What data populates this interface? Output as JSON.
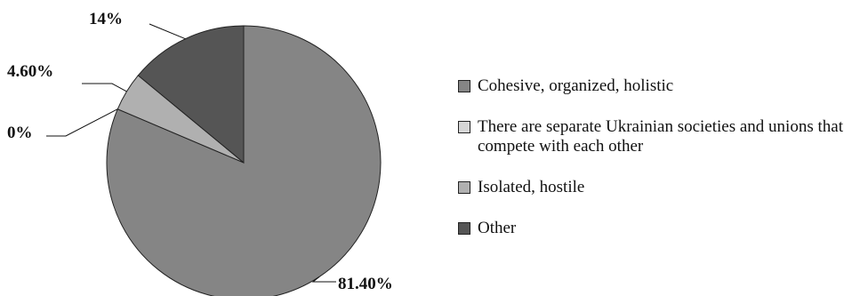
{
  "chart_data": {
    "type": "pie",
    "categories": [
      "Cohesive, organized, holistic",
      "There are separate Ukrainian societies and unions that compete with each other",
      "Isolated, hostile",
      "Other"
    ],
    "values": [
      81.4,
      0,
      4.6,
      14
    ],
    "data_labels": [
      "81.40%",
      "0%",
      "4.60%",
      "14%"
    ],
    "colors": [
      "#858585",
      "#d6d6d6",
      "#b0b0b0",
      "#555555"
    ],
    "legend_position": "right"
  },
  "legend": {
    "items": [
      {
        "label": "Cohesive, organized, holistic",
        "color": "#858585"
      },
      {
        "label": "There are separate Ukrainian societies and unions that compete with each other",
        "color": "#d6d6d6"
      },
      {
        "label": "Isolated, hostile",
        "color": "#b0b0b0"
      },
      {
        "label": "Other",
        "color": "#555555"
      }
    ]
  }
}
